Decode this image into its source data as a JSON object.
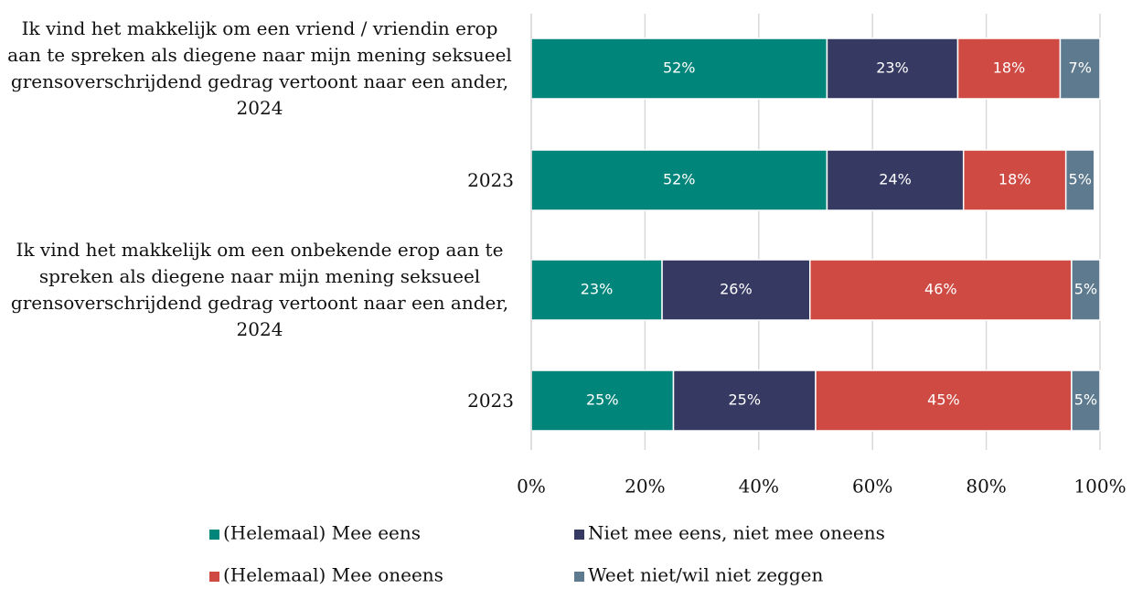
{
  "chart_data": {
    "type": "stacked_barh",
    "categories": [
      "Ik vind het makkelijk om een vriend / vriendin erop aan te spreken als diegene naar mijn mening seksueel grensoverschrijdend gedrag vertoont naar een ander, 2024",
      "2023",
      "Ik vind het makkelijk om een onbekende erop aan te spreken als diegene naar mijn mening seksueel grensoverschrijdend gedrag vertoont naar een ander, 2024",
      "2023"
    ],
    "series": [
      {
        "name": "(Helemaal) Mee eens",
        "color": "#00857a",
        "values": [
          52,
          52,
          23,
          25
        ],
        "value_labels": [
          "52%",
          "52%",
          "23%",
          "25%"
        ]
      },
      {
        "name": "Niet mee eens, niet mee oneens",
        "color": "#363a63",
        "values": [
          23,
          24,
          26,
          25
        ],
        "value_labels": [
          "23%",
          "24%",
          "26%",
          "25%"
        ]
      },
      {
        "name": "(Helemaal) Mee oneens",
        "color": "#cf4a43",
        "values": [
          18,
          18,
          46,
          45
        ],
        "value_labels": [
          "18%",
          "18%",
          "46%",
          "45%"
        ]
      },
      {
        "name": "Weet niet/wil niet zeggen",
        "color": "#5e7a8e",
        "values": [
          7,
          5,
          5,
          5
        ],
        "value_labels": [
          "7%",
          "5%",
          "5%",
          "5%"
        ]
      }
    ],
    "xlim": [
      0,
      100
    ],
    "xticks": [
      {
        "value": 0,
        "label": "0%"
      },
      {
        "value": 20,
        "label": "20%"
      },
      {
        "value": 40,
        "label": "40%"
      },
      {
        "value": 60,
        "label": "60%"
      },
      {
        "value": 80,
        "label": "80%"
      },
      {
        "value": 100,
        "label": "100%"
      }
    ],
    "grid": true,
    "legend": "bottom"
  }
}
